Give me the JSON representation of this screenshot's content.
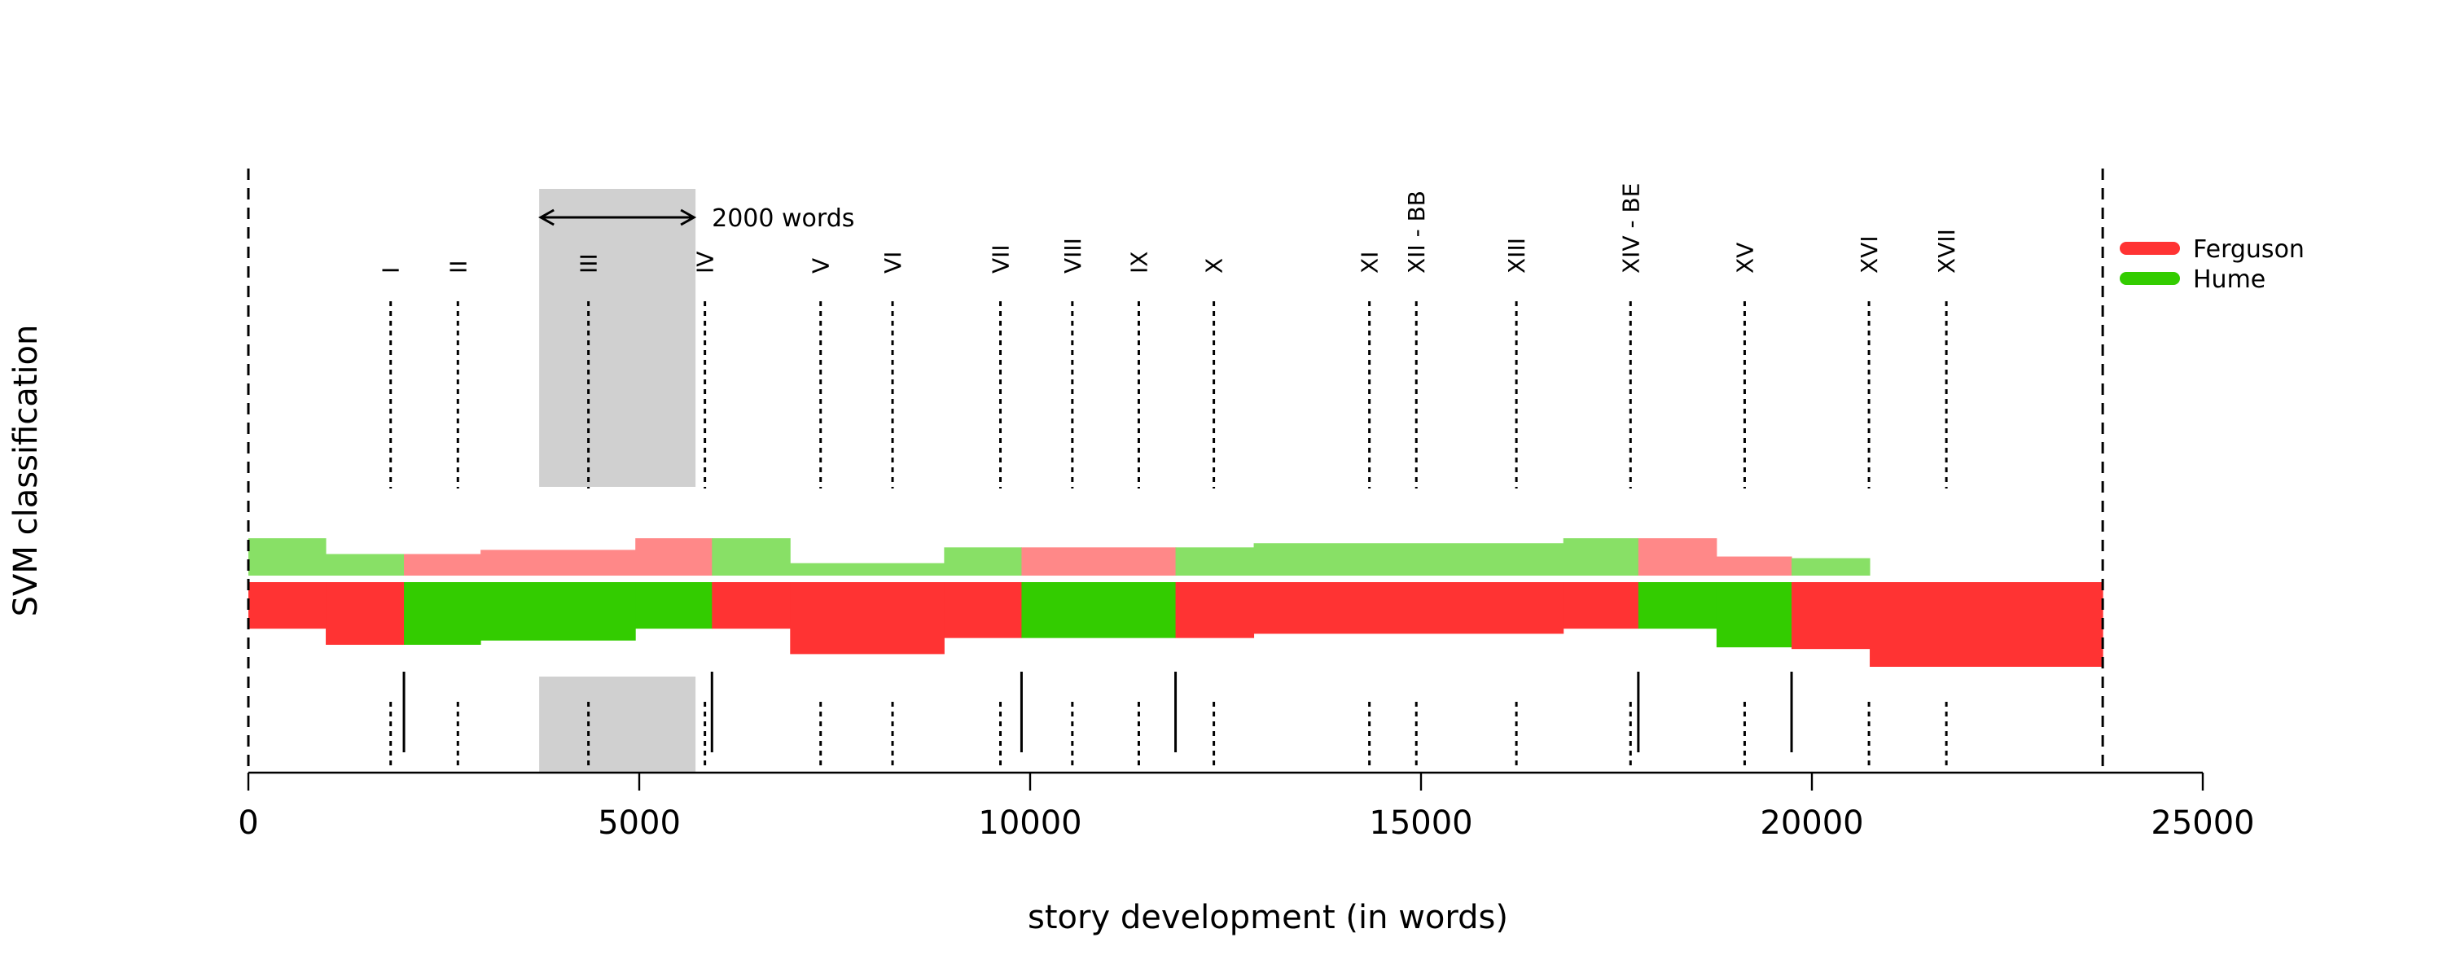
{
  "chart_data": {
    "type": "area",
    "xlabel": "story development (in words)",
    "ylabel": "SVM classification",
    "xlim": [
      0,
      25000
    ],
    "x_ticks": [
      0,
      5000,
      10000,
      15000,
      20000,
      25000
    ],
    "x_tick_labels": [
      "0",
      "5000",
      "10000",
      "15000",
      "20000",
      "25000"
    ],
    "grid": false,
    "legend_position": "top-right",
    "legend": [
      {
        "name": "Ferguson",
        "color": "#ff3333"
      },
      {
        "name": "Hume",
        "color": "#33cc00"
      }
    ],
    "text_length": 23720,
    "window_annotation": {
      "start": 3720,
      "end": 5720,
      "label": "2000 words"
    },
    "chapters": [
      {
        "label": "I",
        "x": 1820
      },
      {
        "label": "II",
        "x": 2680
      },
      {
        "label": "III",
        "x": 4350
      },
      {
        "label": "IV",
        "x": 5840
      },
      {
        "label": "V",
        "x": 7320
      },
      {
        "label": "VI",
        "x": 8240
      },
      {
        "label": "VII",
        "x": 9620
      },
      {
        "label": "VIII",
        "x": 10540
      },
      {
        "label": "IX",
        "x": 11390
      },
      {
        "label": "X",
        "x": 12350
      },
      {
        "label": "XI",
        "x": 14340
      },
      {
        "label": "XII - BB",
        "x": 14940
      },
      {
        "label": "XIII",
        "x": 16220
      },
      {
        "label": "XIV - BE",
        "x": 17680
      },
      {
        "label": "XV",
        "x": 19140
      },
      {
        "label": "XVI",
        "x": 20730
      },
      {
        "label": "XVII",
        "x": 21720
      }
    ],
    "boundary_lines": [
      0,
      23720
    ],
    "authorship_breaks": [
      1990,
      5930,
      9890,
      11860,
      17780,
      19740
    ],
    "segments_main": [
      {
        "start": 0,
        "end": 990,
        "author": "Ferguson",
        "score": 0.55
      },
      {
        "start": 990,
        "end": 1990,
        "author": "Ferguson",
        "score": 0.74
      },
      {
        "start": 1990,
        "end": 2970,
        "author": "Hume",
        "score": 0.74
      },
      {
        "start": 2970,
        "end": 4950,
        "author": "Hume",
        "score": 0.69
      },
      {
        "start": 4950,
        "end": 5930,
        "author": "Hume",
        "score": 0.55
      },
      {
        "start": 5930,
        "end": 6930,
        "author": "Ferguson",
        "score": 0.55
      },
      {
        "start": 6930,
        "end": 8900,
        "author": "Ferguson",
        "score": 0.85
      },
      {
        "start": 8900,
        "end": 9890,
        "author": "Ferguson",
        "score": 0.66
      },
      {
        "start": 9890,
        "end": 11860,
        "author": "Hume",
        "score": 0.66
      },
      {
        "start": 11860,
        "end": 12860,
        "author": "Ferguson",
        "score": 0.66
      },
      {
        "start": 12860,
        "end": 16820,
        "author": "Ferguson",
        "score": 0.61
      },
      {
        "start": 16820,
        "end": 17780,
        "author": "Ferguson",
        "score": 0.55
      },
      {
        "start": 17780,
        "end": 18780,
        "author": "Hume",
        "score": 0.55
      },
      {
        "start": 18780,
        "end": 19740,
        "author": "Hume",
        "score": 0.77
      },
      {
        "start": 19740,
        "end": 20740,
        "author": "Ferguson",
        "score": 0.79
      },
      {
        "start": 20740,
        "end": 23720,
        "author": "Ferguson",
        "score": 1.0
      }
    ],
    "segments_second": [
      {
        "start": 0,
        "end": 990,
        "author": "Hume",
        "score": 0.45
      },
      {
        "start": 990,
        "end": 1990,
        "author": "Hume",
        "score": 0.26
      },
      {
        "start": 1990,
        "end": 2970,
        "author": "Ferguson",
        "score": 0.26
      },
      {
        "start": 2970,
        "end": 4950,
        "author": "Ferguson",
        "score": 0.31
      },
      {
        "start": 4950,
        "end": 5930,
        "author": "Ferguson",
        "score": 0.45
      },
      {
        "start": 5930,
        "end": 6930,
        "author": "Hume",
        "score": 0.45
      },
      {
        "start": 6930,
        "end": 8900,
        "author": "Hume",
        "score": 0.15
      },
      {
        "start": 8900,
        "end": 9890,
        "author": "Hume",
        "score": 0.34
      },
      {
        "start": 9890,
        "end": 11860,
        "author": "Ferguson",
        "score": 0.34
      },
      {
        "start": 11860,
        "end": 12860,
        "author": "Hume",
        "score": 0.34
      },
      {
        "start": 12860,
        "end": 16820,
        "author": "Hume",
        "score": 0.39
      },
      {
        "start": 16820,
        "end": 17780,
        "author": "Hume",
        "score": 0.45
      },
      {
        "start": 17780,
        "end": 18780,
        "author": "Ferguson",
        "score": 0.45
      },
      {
        "start": 18780,
        "end": 19740,
        "author": "Ferguson",
        "score": 0.23
      },
      {
        "start": 19740,
        "end": 20740,
        "author": "Hume",
        "score": 0.21
      }
    ],
    "colors": {
      "ferguson": "#ff3333",
      "hume": "#33cc00",
      "ferguson_light": "#ff8888",
      "hume_light": "#88e066",
      "window_fill": "#d0d0d0"
    }
  }
}
